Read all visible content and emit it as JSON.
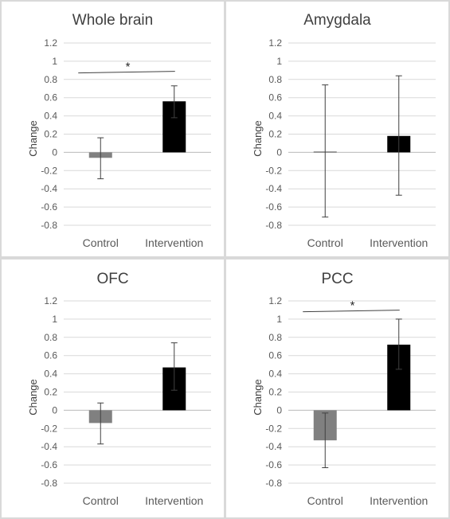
{
  "chart_data": [
    {
      "type": "bar",
      "title": "Whole brain",
      "categories": [
        "Control",
        "Intervention"
      ],
      "values": [
        -0.06,
        0.56
      ],
      "error_low": [
        -0.29,
        0.38
      ],
      "error_high": [
        0.16,
        0.73
      ],
      "bar_colors": [
        "#808080",
        "#000000"
      ],
      "ylabel": "Change",
      "ylim": [
        -0.8,
        1.2
      ],
      "yticks": [
        "-0.8",
        "-0.6",
        "-0.4",
        "-0.2",
        "0",
        "0.2",
        "0.4",
        "0.6",
        "0.8",
        "1",
        "1.2"
      ],
      "significance": {
        "label": "*",
        "level": 0.88
      },
      "grid": true
    },
    {
      "type": "bar",
      "title": "Amygdala",
      "categories": [
        "Control",
        "Intervention"
      ],
      "values": [
        0.01,
        0.18
      ],
      "error_low": [
        -0.71,
        -0.47
      ],
      "error_high": [
        0.74,
        0.84
      ],
      "bar_colors": [
        "#808080",
        "#000000"
      ],
      "ylabel": "Change",
      "ylim": [
        -0.8,
        1.2
      ],
      "yticks": [
        "-0.8",
        "-0.6",
        "-0.4",
        "-0.2",
        "0",
        "0.2",
        "0.4",
        "0.6",
        "0.8",
        "1",
        "1.2"
      ],
      "grid": true
    },
    {
      "type": "bar",
      "title": "OFC",
      "categories": [
        "Control",
        "Intervention"
      ],
      "values": [
        -0.14,
        0.47
      ],
      "error_low": [
        -0.37,
        0.22
      ],
      "error_high": [
        0.08,
        0.74
      ],
      "bar_colors": [
        "#808080",
        "#000000"
      ],
      "ylabel": "Change",
      "ylim": [
        -0.8,
        1.2
      ],
      "yticks": [
        "-0.8",
        "-0.6",
        "-0.4",
        "-0.2",
        "0",
        "0.2",
        "0.4",
        "0.6",
        "0.8",
        "1",
        "1.2"
      ],
      "grid": true
    },
    {
      "type": "bar",
      "title": "PCC",
      "categories": [
        "Control",
        "Intervention"
      ],
      "values": [
        -0.33,
        0.72
      ],
      "error_low": [
        -0.63,
        0.45
      ],
      "error_high": [
        -0.03,
        1.0
      ],
      "bar_colors": [
        "#808080",
        "#000000"
      ],
      "ylabel": "Change",
      "ylim": [
        -0.8,
        1.2
      ],
      "yticks": [
        "-0.8",
        "-0.6",
        "-0.4",
        "-0.2",
        "0",
        "0.2",
        "0.4",
        "0.6",
        "0.8",
        "1",
        "1.2"
      ],
      "significance": {
        "label": "*",
        "level": 1.09
      },
      "grid": true
    }
  ]
}
